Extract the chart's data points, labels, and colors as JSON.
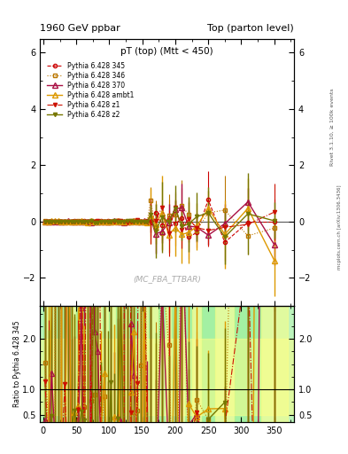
{
  "title_left": "1960 GeV ppbar",
  "title_right": "Top (parton level)",
  "plot_title": "pT (top) (Mtt < 450)",
  "ylabel_main": "",
  "ylabel_ratio": "Ratio to Pythia 6.428 345",
  "xlabel": "",
  "right_label_main": "Rivet 3.1.10, ≥ 100k events",
  "right_label_sub": "mcplots.cern.ch [arXiv:1306.3436]",
  "watermark": "(MC_FBA_TTBAR)",
  "ylim_main": [
    -3,
    6.5
  ],
  "ylim_ratio": [
    0.35,
    2.65
  ],
  "xlim": [
    -5,
    380
  ],
  "yticks_main": [
    -2,
    0,
    2,
    4,
    6
  ],
  "yticks_ratio": [
    0.5,
    1.0,
    2.0
  ],
  "series": [
    {
      "label": "Pythia 6.428 345",
      "color": "#cc0000",
      "linestyle": "--",
      "marker": "o",
      "markerfacecolor": "none",
      "linewidth": 0.8,
      "markersize": 3
    },
    {
      "label": "Pythia 6.428 346",
      "color": "#bb7700",
      "linestyle": ":",
      "marker": "s",
      "markerfacecolor": "none",
      "linewidth": 0.8,
      "markersize": 3
    },
    {
      "label": "Pythia 6.428 370",
      "color": "#aa1144",
      "linestyle": "-",
      "marker": "^",
      "markerfacecolor": "none",
      "linewidth": 1.0,
      "markersize": 4
    },
    {
      "label": "Pythia 6.428 ambt1",
      "color": "#dd9900",
      "linestyle": "-",
      "marker": "^",
      "markerfacecolor": "none",
      "linewidth": 1.0,
      "markersize": 4
    },
    {
      "label": "Pythia 6.428 z1",
      "color": "#cc1100",
      "linestyle": "-.",
      "marker": "v",
      "markerfacecolor": "#cc1100",
      "linewidth": 0.8,
      "markersize": 3
    },
    {
      "label": "Pythia 6.428 z2",
      "color": "#777700",
      "linestyle": "-",
      "marker": "v",
      "markerfacecolor": "#777700",
      "linewidth": 1.0,
      "markersize": 3
    }
  ],
  "band_green": "#90ee90",
  "band_yellow": "#ffff88",
  "ratio_line": 1.0
}
